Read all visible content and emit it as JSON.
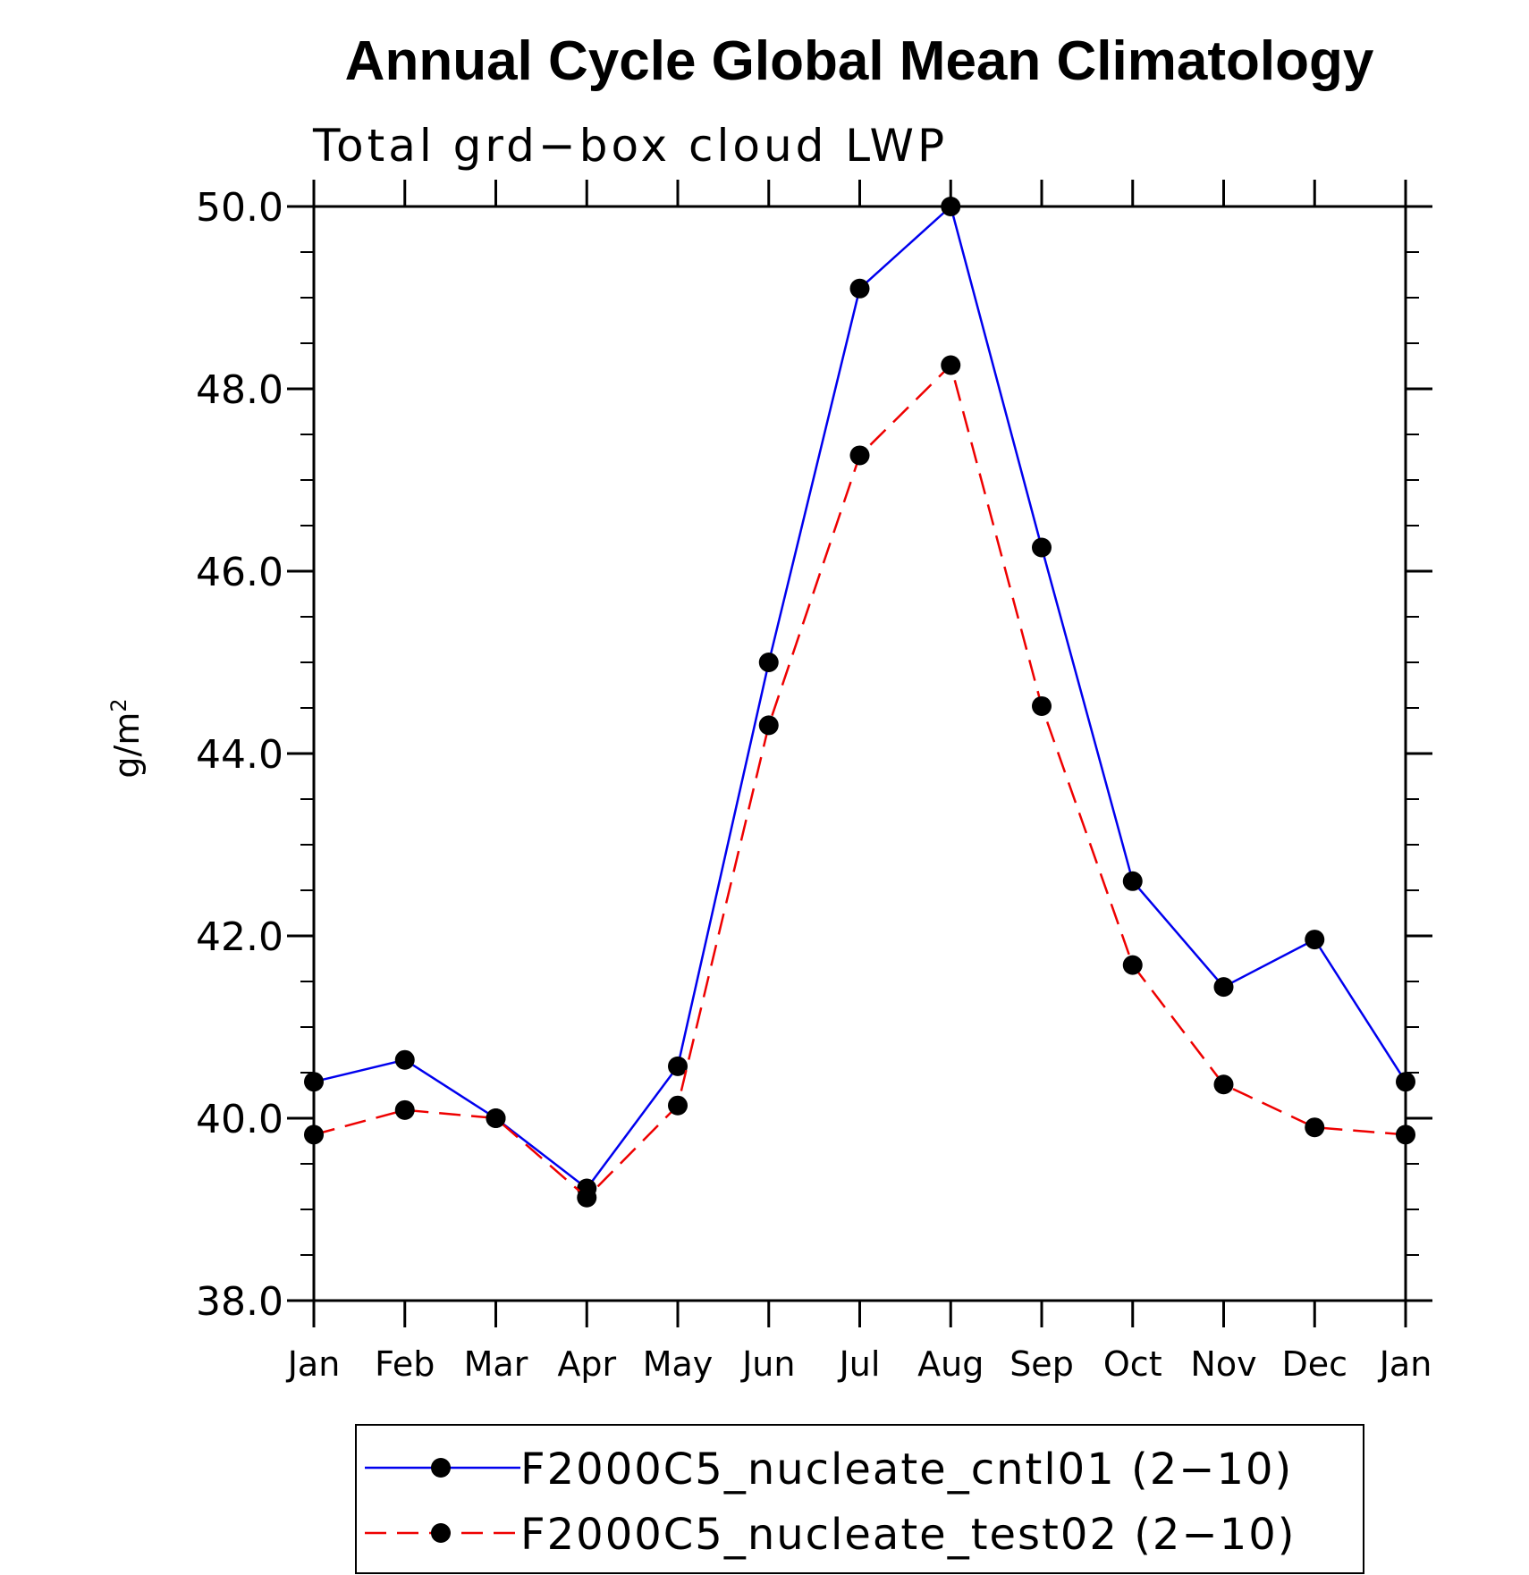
{
  "chart_data": {
    "type": "line",
    "title": "Annual Cycle Global Mean Climatology",
    "subtitle": "Total grd−box cloud LWP",
    "ylabel": "g/m",
    "ylabel_superscript": "2",
    "xlabel": "",
    "categories": [
      "Jan",
      "Feb",
      "Mar",
      "Apr",
      "May",
      "Jun",
      "Jul",
      "Aug",
      "Sep",
      "Oct",
      "Nov",
      "Dec",
      "Jan"
    ],
    "ylim": [
      38.0,
      50.0
    ],
    "yticks": [
      "38.0",
      "40.0",
      "42.0",
      "44.0",
      "46.0",
      "48.0",
      "50.0"
    ],
    "grid": false,
    "legend_position": "bottom",
    "marker": "filled-circle",
    "marker_color": "#000000",
    "series": [
      {
        "name": "F2000C5_nucleate_cntl01 (2−10)",
        "color": "#0000ee",
        "line_style": "solid",
        "values": [
          40.4,
          40.64,
          40.0,
          39.23,
          40.57,
          45.0,
          49.1,
          50.0,
          46.26,
          42.6,
          41.44,
          41.96,
          40.4
        ]
      },
      {
        "name": "F2000C5_nucleate_test02 (2−10)",
        "color": "#ee0000",
        "line_style": "dashed",
        "values": [
          39.82,
          40.09,
          40.0,
          39.13,
          40.14,
          44.31,
          47.27,
          48.26,
          44.52,
          41.68,
          40.37,
          39.9,
          39.82
        ]
      }
    ]
  }
}
